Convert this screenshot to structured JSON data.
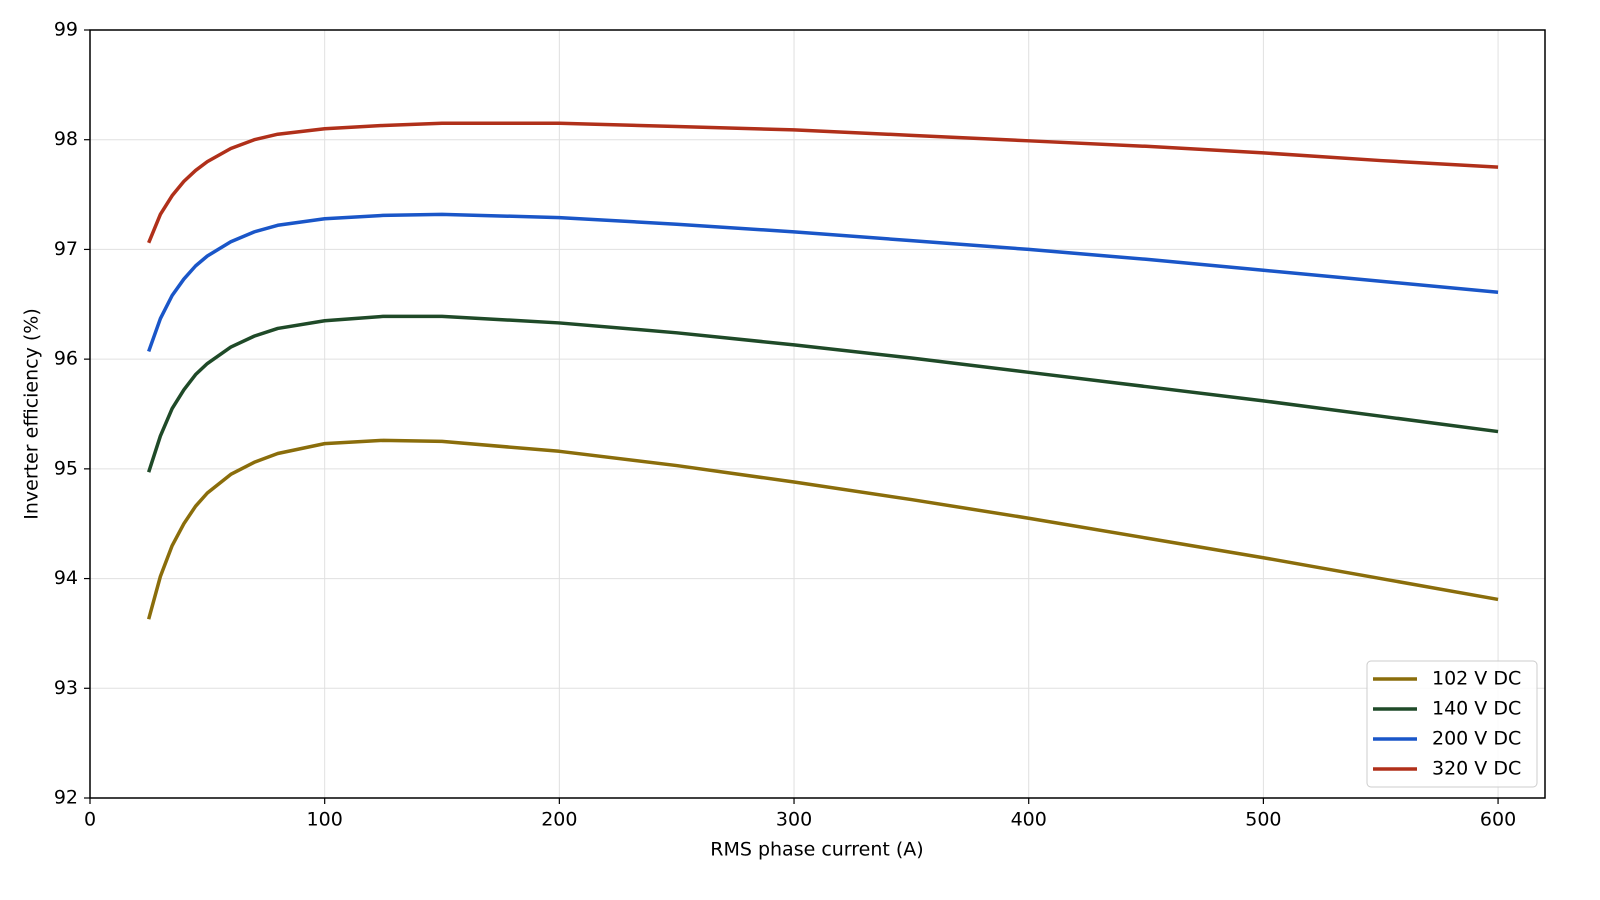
{
  "chart_data": {
    "type": "line",
    "xlabel": "RMS phase current (A)",
    "ylabel": "Inverter efficiency (%)",
    "x": [
      25,
      30,
      35,
      40,
      45,
      50,
      60,
      70,
      80,
      100,
      125,
      150,
      200,
      250,
      300,
      350,
      400,
      450,
      500,
      550,
      600
    ],
    "series": [
      {
        "name": "102 V DC",
        "color": "#8a6d0b",
        "values": [
          93.63,
          94.02,
          94.3,
          94.5,
          94.66,
          94.78,
          94.95,
          95.06,
          95.14,
          95.23,
          95.26,
          95.25,
          95.16,
          95.03,
          94.88,
          94.72,
          94.55,
          94.37,
          94.19,
          94.0,
          93.81
        ]
      },
      {
        "name": "140 V DC",
        "color": "#1f4a28",
        "values": [
          94.97,
          95.3,
          95.55,
          95.72,
          95.86,
          95.96,
          96.11,
          96.21,
          96.28,
          96.35,
          96.39,
          96.39,
          96.33,
          96.24,
          96.13,
          96.01,
          95.88,
          95.75,
          95.62,
          95.48,
          95.34
        ]
      },
      {
        "name": "200 V DC",
        "color": "#1a56c8",
        "values": [
          96.07,
          96.37,
          96.58,
          96.73,
          96.85,
          96.94,
          97.07,
          97.16,
          97.22,
          97.28,
          97.31,
          97.32,
          97.29,
          97.23,
          97.16,
          97.08,
          97.0,
          96.91,
          96.81,
          96.71,
          96.61
        ]
      },
      {
        "name": "320 V DC",
        "color": "#b0301a",
        "values": [
          97.06,
          97.32,
          97.49,
          97.62,
          97.72,
          97.8,
          97.92,
          98.0,
          98.05,
          98.1,
          98.13,
          98.15,
          98.15,
          98.12,
          98.09,
          98.04,
          97.99,
          97.94,
          97.88,
          97.81,
          97.75
        ]
      }
    ],
    "xlim": [
      0,
      620
    ],
    "xticks": [
      0,
      100,
      200,
      300,
      400,
      500,
      600
    ],
    "ylim": [
      92,
      99
    ],
    "yticks": [
      92,
      93,
      94,
      95,
      96,
      97,
      98,
      99
    ],
    "grid": true,
    "legend": "lower right"
  }
}
